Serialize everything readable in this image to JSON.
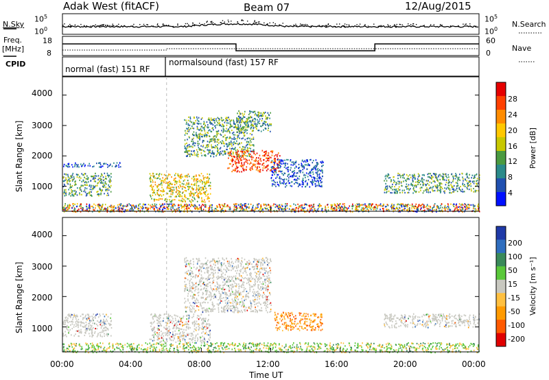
{
  "header": {
    "left": "Adak West (fitACF)",
    "center": "Beam 07",
    "right": "12/Aug/2015"
  },
  "top_panel": {
    "left_label": "N.Sky",
    "left_scale_top": "10^5",
    "left_scale_bottom": "10^0",
    "right_label": "N.Search",
    "right_scale_top": "10^5",
    "right_scale_bottom": "10^0"
  },
  "freq_panel": {
    "left_label_line1": "Freq.",
    "left_label_line2": "[MHz]",
    "left_top": "18",
    "left_bottom": "8",
    "right_label": "Nave",
    "right_top": "60",
    "right_bottom": "0"
  },
  "cpid_panel": {
    "label": "CPID",
    "segment1": "normal (fast) 151 RF",
    "segment2": "normalsound (fast) 157 RF"
  },
  "colorbars": {
    "power": {
      "label": "Power [dB]",
      "ticks": [
        "28",
        "24",
        "20",
        "16",
        "12",
        "8",
        "4"
      ],
      "colors": [
        "#e60000",
        "#ff4000",
        "#ff8c00",
        "#ffc800",
        "#c8c800",
        "#4a9a40",
        "#2a8a8a",
        "#2050b0",
        "#0010ff"
      ]
    },
    "velocity": {
      "label": "Velocity [m s⁻¹]",
      "ticks": [
        "200",
        "100",
        "50",
        "15",
        "-15",
        "-50",
        "-100",
        "-200"
      ],
      "colors": [
        "#1f3aa8",
        "#2f6ebf",
        "#3a8a5a",
        "#5ac83a",
        "#c8c8c0",
        "#ffc040",
        "#ff9a00",
        "#ff5a00",
        "#e00000"
      ]
    }
  },
  "x_axis": {
    "label": "Time UT",
    "ticks": [
      "00:00",
      "04:00",
      "08:00",
      "12:00",
      "16:00",
      "20:00",
      "00:00"
    ]
  },
  "chart_data": {
    "type": "heatmap",
    "panels": [
      {
        "name": "Power",
        "ylabel": "Slant Range [km]",
        "yticks": [
          1000,
          2000,
          3000,
          4000
        ],
        "ylim": [
          180,
          4600
        ],
        "xlim_hours": [
          0,
          24
        ],
        "color_scale": "power_dB",
        "regions": [
          {
            "t0": 0.0,
            "t1": 2.8,
            "r0": 700,
            "r1": 1450,
            "level": "mid"
          },
          {
            "t0": 0.0,
            "t1": 3.5,
            "r0": 1650,
            "r1": 1800,
            "level": "low"
          },
          {
            "t0": 5.0,
            "t1": 8.5,
            "r0": 500,
            "r1": 1450,
            "level": "high"
          },
          {
            "t0": 7.0,
            "t1": 11.0,
            "r0": 2000,
            "r1": 3300,
            "level": "mid"
          },
          {
            "t0": 9.5,
            "t1": 12.5,
            "r0": 1500,
            "r1": 2200,
            "level": "max"
          },
          {
            "t0": 10.0,
            "t1": 12.0,
            "r0": 2800,
            "r1": 3500,
            "level": "mid"
          },
          {
            "t0": 12.0,
            "t1": 15.0,
            "r0": 1000,
            "r1": 1900,
            "level": "low"
          },
          {
            "t0": 18.5,
            "t1": 24.0,
            "r0": 800,
            "r1": 1450,
            "level": "mid"
          },
          {
            "t0": 0.0,
            "t1": 24.0,
            "r0": 180,
            "r1": 450,
            "level": "noise"
          }
        ]
      },
      {
        "name": "Velocity",
        "ylabel": "Slant Range [km]",
        "yticks": [
          1000,
          2000,
          3000,
          4000
        ],
        "ylim": [
          180,
          4600
        ],
        "xlim_hours": [
          0,
          24
        ],
        "color_scale": "velocity_ms",
        "regions": [
          {
            "t0": 0.0,
            "t1": 2.8,
            "r0": 700,
            "r1": 1450,
            "level": "gray"
          },
          {
            "t0": 5.0,
            "t1": 8.5,
            "r0": 500,
            "r1": 1450,
            "level": "gray"
          },
          {
            "t0": 7.0,
            "t1": 12.0,
            "r0": 1500,
            "r1": 3300,
            "level": "gray"
          },
          {
            "t0": 12.2,
            "t1": 15.0,
            "r0": 900,
            "r1": 1500,
            "level": "neg"
          },
          {
            "t0": 18.5,
            "t1": 24.0,
            "r0": 1000,
            "r1": 1450,
            "level": "gray"
          },
          {
            "t0": 0.0,
            "t1": 24.0,
            "r0": 180,
            "r1": 500,
            "level": "pos"
          }
        ]
      }
    ]
  }
}
